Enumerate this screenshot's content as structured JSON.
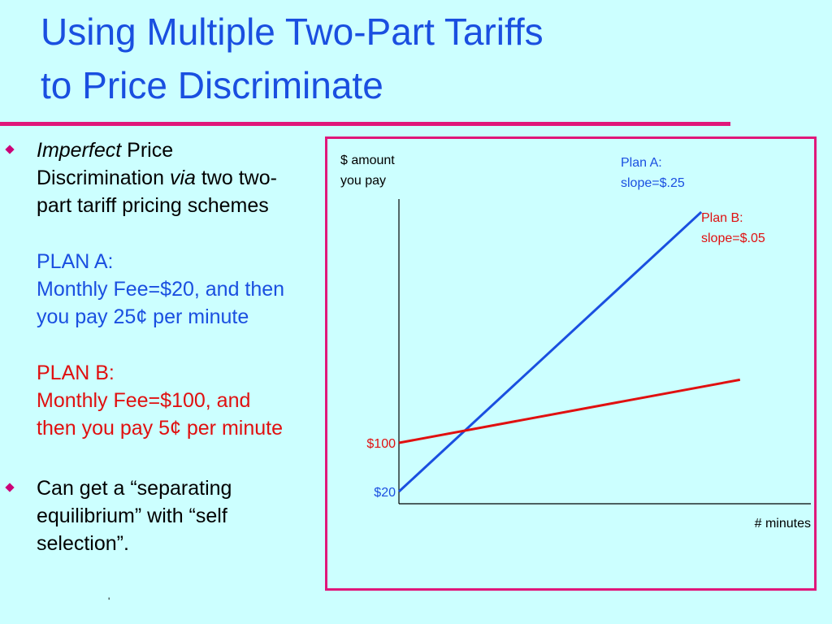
{
  "title": {
    "line1": "Using Multiple Two-Part Tariffs",
    "line2": "to Price Discriminate"
  },
  "bullet1": {
    "line1_italic": "Imperfect",
    "line1_rest": " Price",
    "line2_start": "Discrimination ",
    "line2_italic": "via",
    "line2_end": " two two-",
    "line3": "part tariff pricing schemes"
  },
  "plan_a": {
    "heading": "PLAN A:",
    "line1": "Monthly Fee=$20, and then",
    "line2": "you pay 25¢ per minute"
  },
  "plan_b": {
    "heading": "PLAN B:",
    "line1": "Monthly Fee=$100, and",
    "line2": "then you pay 5¢ per minute"
  },
  "bullet2": {
    "line1": "Can get a “separating",
    "line2": "equilibrium” with “self",
    "line3": "selection”."
  },
  "footnote": "'",
  "colors": {
    "plan_a": "#1a4fe0",
    "plan_b": "#e01010",
    "accent": "#e0177a",
    "background": "#ccffff"
  },
  "chart_data": {
    "type": "line",
    "ylabel_line1": "$ amount",
    "ylabel_line2": "you pay",
    "xlabel": "# minutes",
    "series": [
      {
        "name": "Plan A",
        "legend_line1": "Plan A:",
        "legend_line2": "slope=$.25",
        "intercept_label": "$20",
        "intercept": 20,
        "slope": 0.25,
        "x": [
          0,
          1835
        ],
        "y": [
          20,
          478.75
        ]
      },
      {
        "name": "Plan B",
        "legend_line1": "Plan B:",
        "legend_line2": "slope=$.05",
        "intercept_label": "$100",
        "intercept": 100,
        "slope": 0.05,
        "x": [
          0,
          2070
        ],
        "y": [
          100,
          203.5
        ]
      }
    ],
    "xlim": [
      0,
      2500
    ],
    "ylim": [
      0,
      500
    ]
  }
}
